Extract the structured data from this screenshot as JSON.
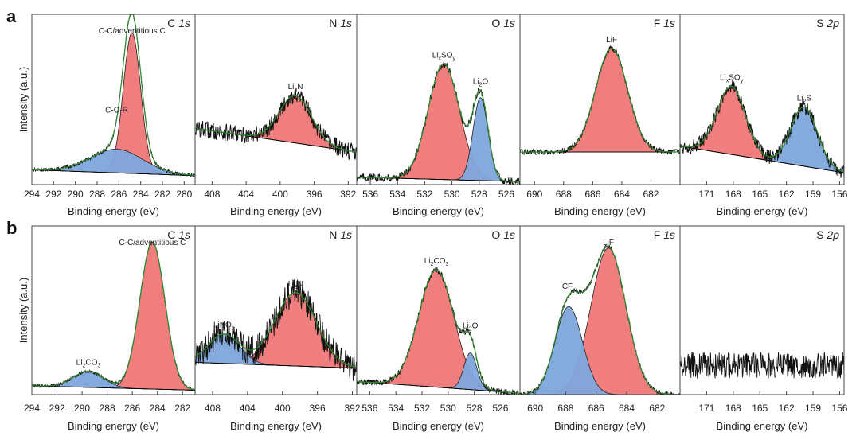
{
  "figure": {
    "ylabel": "Intensity (a.u.)",
    "xlabel": "Binding energy (eV)",
    "colors": {
      "red_fill": "#ef7777",
      "blue_fill": "#7ea6dc",
      "raw": "#111111",
      "envelope": "#2e8b2e",
      "background": "#000000",
      "frame": "#444444"
    }
  },
  "chart_data": [
    {
      "row_label": "a",
      "type": "xps",
      "element": "C",
      "orbital": "1s",
      "xlabel": "Binding energy (eV)",
      "ylabel": "Intensity (a.u.)",
      "xlim": [
        294,
        279
      ],
      "ylim": [
        0,
        1.15
      ],
      "ticks": [
        {
          "v": 294,
          "t": "294"
        },
        {
          "v": 292,
          "t": "292"
        },
        {
          "v": 290,
          "t": "290"
        },
        {
          "v": 288,
          "t": "288"
        },
        {
          "v": 286,
          "t": "286"
        },
        {
          "v": 284,
          "t": "284"
        },
        {
          "v": 282,
          "t": "282"
        },
        {
          "v": 280,
          "t": "280"
        }
      ],
      "baseline": [
        0.1,
        0.06
      ],
      "noise": 0.012,
      "peaks": [
        {
          "center": 284.8,
          "sigma": 0.8,
          "height": 0.95,
          "color": "red",
          "label_main": "C-C/adventitious C",
          "label_sub": "",
          "label_tail": ""
        },
        {
          "center": 286.2,
          "sigma": 2.4,
          "height": 0.16,
          "color": "blue",
          "label_main": "C-O-R",
          "label_sub": "",
          "label_tail": ""
        }
      ]
    },
    {
      "row_label": "",
      "type": "xps",
      "element": "N",
      "orbital": "1s",
      "xlabel": "Binding energy (eV)",
      "ylabel": "",
      "xlim": [
        410,
        391
      ],
      "ylim": [
        0,
        1.15
      ],
      "ticks": [
        {
          "v": 408,
          "t": "408"
        },
        {
          "v": 404,
          "t": "404"
        },
        {
          "v": 400,
          "t": "400"
        },
        {
          "v": 396,
          "t": "396"
        },
        {
          "v": 392,
          "t": "392"
        }
      ],
      "baseline": [
        0.38,
        0.22
      ],
      "noise": 0.06,
      "peaks": [
        {
          "center": 398.2,
          "sigma": 1.9,
          "height": 0.32,
          "color": "red",
          "label_main": "Li",
          "label_sub": "3",
          "label_tail": "N"
        }
      ]
    },
    {
      "row_label": "",
      "type": "xps",
      "element": "O",
      "orbital": "1s",
      "xlabel": "Binding energy (eV)",
      "ylabel": "",
      "xlim": [
        537,
        525
      ],
      "ylim": [
        0,
        1.15
      ],
      "ticks": [
        {
          "v": 536,
          "t": "536"
        },
        {
          "v": 534,
          "t": "534"
        },
        {
          "v": 532,
          "t": "532"
        },
        {
          "v": 530,
          "t": "530"
        },
        {
          "v": 528,
          "t": "528"
        },
        {
          "v": 526,
          "t": "526"
        }
      ],
      "baseline": [
        0.05,
        0.02
      ],
      "noise": 0.025,
      "peaks": [
        {
          "center": 530.6,
          "sigma": 1.15,
          "height": 0.78,
          "color": "red",
          "label_main": "Li",
          "label_sub": "x",
          "label_tail": "SO",
          "label_sub2": "y"
        },
        {
          "center": 527.9,
          "sigma": 0.55,
          "height": 0.56,
          "color": "blue",
          "label_main": "Li",
          "label_sub": "2",
          "label_tail": "O"
        }
      ]
    },
    {
      "row_label": "",
      "type": "xps",
      "element": "F",
      "orbital": "1s",
      "xlabel": "Binding energy (eV)",
      "ylabel": "",
      "xlim": [
        691,
        680
      ],
      "ylim": [
        0,
        1.15
      ],
      "ticks": [
        {
          "v": 690,
          "t": "690"
        },
        {
          "v": 688,
          "t": "688"
        },
        {
          "v": 686,
          "t": "686"
        },
        {
          "v": 684,
          "t": "684"
        },
        {
          "v": 682,
          "t": "682"
        }
      ],
      "baseline": [
        0.22,
        0.22
      ],
      "noise": 0.018,
      "peaks": [
        {
          "center": 684.7,
          "sigma": 1.1,
          "height": 0.7,
          "color": "red",
          "label_main": "LiF",
          "label_sub": "",
          "label_tail": ""
        }
      ]
    },
    {
      "row_label": "",
      "type": "xps",
      "element": "S",
      "orbital": "2p",
      "xlabel": "Binding energy (eV)",
      "ylabel": "",
      "xlim": [
        174,
        155.5
      ],
      "ylim": [
        0,
        1.15
      ],
      "ticks": [
        {
          "v": 171,
          "t": "171"
        },
        {
          "v": 168,
          "t": "168"
        },
        {
          "v": 165,
          "t": "165"
        },
        {
          "v": 162,
          "t": "162"
        },
        {
          "v": 159,
          "t": "159"
        },
        {
          "v": 156,
          "t": "156"
        }
      ],
      "baseline": [
        0.26,
        0.08
      ],
      "noise": 0.05,
      "peaks": [
        {
          "center": 168.2,
          "sigma": 1.6,
          "height": 0.46,
          "color": "red",
          "label_main": "Li",
          "label_sub": "x",
          "label_tail": "SO",
          "label_sub2": "y"
        },
        {
          "center": 160.0,
          "sigma": 1.5,
          "height": 0.4,
          "color": "blue",
          "label_main": "Li",
          "label_sub": "2",
          "label_tail": "S"
        }
      ]
    },
    {
      "row_label": "b",
      "type": "xps",
      "element": "C",
      "orbital": "1s",
      "xlabel": "Binding energy (eV)",
      "ylabel": "Intensity (a.u.)",
      "xlim": [
        294,
        281
      ],
      "ylim": [
        0,
        1.15
      ],
      "ticks": [
        {
          "v": 294,
          "t": "294"
        },
        {
          "v": 292,
          "t": "292"
        },
        {
          "v": 290,
          "t": "290"
        },
        {
          "v": 288,
          "t": "288"
        },
        {
          "v": 286,
          "t": "286"
        },
        {
          "v": 284,
          "t": "284"
        },
        {
          "v": 282,
          "t": "282"
        }
      ],
      "baseline": [
        0.06,
        0.03
      ],
      "noise": 0.01,
      "peaks": [
        {
          "center": 284.4,
          "sigma": 1.0,
          "height": 1.0,
          "color": "red",
          "label_main": "C-C/adventitious C",
          "label_sub": "",
          "label_tail": ""
        },
        {
          "center": 289.5,
          "sigma": 1.2,
          "height": 0.11,
          "color": "blue",
          "label_main": "Li",
          "label_sub": "2",
          "label_tail": "CO",
          "label_sub2": "3"
        }
      ]
    },
    {
      "row_label": "",
      "type": "xps",
      "element": "N",
      "orbital": "1s",
      "xlabel": "Binding energy (eV)",
      "ylabel": "",
      "xlim": [
        410,
        391.5
      ],
      "ylim": [
        0,
        1.15
      ],
      "ticks": [
        {
          "v": 408,
          "t": "408"
        },
        {
          "v": 404,
          "t": "404"
        },
        {
          "v": 400,
          "t": "400"
        },
        {
          "v": 396,
          "t": "396"
        },
        {
          "v": 392,
          "t": "392"
        }
      ],
      "baseline": [
        0.22,
        0.18
      ],
      "noise": 0.1,
      "peaks": [
        {
          "center": 406.7,
          "sigma": 1.8,
          "height": 0.2,
          "color": "blue",
          "label_main": "LiNO",
          "label_sub": "x",
          "label_tail": ""
        },
        {
          "center": 398.5,
          "sigma": 2.4,
          "height": 0.5,
          "color": "red",
          "label_main": "Li",
          "label_sub": "3",
          "label_tail": "N"
        }
      ]
    },
    {
      "row_label": "",
      "type": "xps",
      "element": "O",
      "orbital": "1s",
      "xlabel": "Binding energy (eV)",
      "ylabel": "",
      "xlim": [
        537,
        524.5
      ],
      "ylim": [
        0,
        1.15
      ],
      "ticks": [
        {
          "v": 536,
          "t": "536"
        },
        {
          "v": 534,
          "t": "534"
        },
        {
          "v": 532,
          "t": "532"
        },
        {
          "v": 530,
          "t": "530"
        },
        {
          "v": 528,
          "t": "528"
        },
        {
          "v": 526,
          "t": "526"
        }
      ],
      "baseline": [
        0.09,
        0.01
      ],
      "noise": 0.02,
      "peaks": [
        {
          "center": 530.9,
          "sigma": 1.35,
          "height": 0.8,
          "color": "red",
          "label_main": "Li",
          "label_sub": "2",
          "label_tail": "CO",
          "label_sub2": "3"
        },
        {
          "center": 528.3,
          "sigma": 0.5,
          "height": 0.25,
          "color": "blue",
          "label_main": "Li",
          "label_sub": "2",
          "label_tail": "O"
        }
      ]
    },
    {
      "row_label": "",
      "type": "xps",
      "element": "F",
      "orbital": "1s",
      "xlabel": "Binding energy (eV)",
      "ylabel": "",
      "xlim": [
        691,
        680.5
      ],
      "ylim": [
        0,
        1.15
      ],
      "ticks": [
        {
          "v": 690,
          "t": "690"
        },
        {
          "v": 688,
          "t": "688"
        },
        {
          "v": 686,
          "t": "686"
        },
        {
          "v": 684,
          "t": "684"
        },
        {
          "v": 682,
          "t": "682"
        }
      ],
      "baseline": [
        0.0,
        0.0
      ],
      "noise": 0.015,
      "peaks": [
        {
          "center": 687.8,
          "sigma": 0.9,
          "height": 0.6,
          "color": "blue",
          "label_main": "CF",
          "label_sub": "x",
          "label_tail": ""
        },
        {
          "center": 685.2,
          "sigma": 1.15,
          "height": 1.0,
          "color": "red",
          "label_main": "LiF",
          "label_sub": "",
          "label_tail": ""
        }
      ]
    },
    {
      "row_label": "",
      "type": "xps",
      "element": "S",
      "orbital": "2p",
      "xlabel": "Binding energy (eV)",
      "ylabel": "",
      "xlim": [
        174,
        155.5
      ],
      "ylim": [
        0,
        1.15
      ],
      "ticks": [
        {
          "v": 171,
          "t": "171"
        },
        {
          "v": 168,
          "t": "168"
        },
        {
          "v": 165,
          "t": "165"
        },
        {
          "v": 162,
          "t": "162"
        },
        {
          "v": 159,
          "t": "159"
        },
        {
          "v": 156,
          "t": "156"
        }
      ],
      "baseline": [
        0.2,
        0.2
      ],
      "noise": 0.09,
      "peaks": []
    }
  ]
}
